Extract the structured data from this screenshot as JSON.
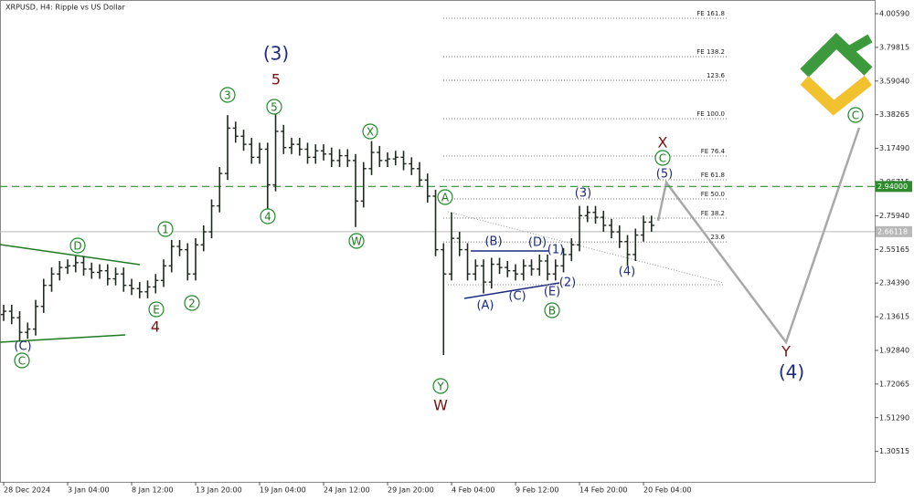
{
  "chart_data": {
    "type": "ohlc",
    "title": "XRPUSD, H4: Ripple vs US Dollar",
    "bar_color": "#1e2a1e",
    "open": [
      2.15,
      2.17,
      2.13,
      2.04,
      2.06,
      2.2,
      2.33,
      2.4,
      2.44,
      2.45,
      2.47,
      2.43,
      2.41,
      2.42,
      2.37,
      2.4,
      2.33,
      2.31,
      2.29,
      2.32,
      2.36,
      2.45,
      2.57,
      2.55,
      2.4,
      2.58,
      2.66,
      2.82,
      3.02,
      3.3,
      3.25,
      3.2,
      3.12,
      3.17,
      2.95,
      3.28,
      3.18,
      3.2,
      3.17,
      3.12,
      3.16,
      3.14,
      3.1,
      3.13,
      3.1,
      2.85,
      3.05,
      3.15,
      3.1,
      3.11,
      3.12,
      3.08,
      3.05,
      2.98,
      2.88,
      2.55,
      2.4,
      2.62,
      2.55,
      2.4,
      2.45,
      2.35,
      2.46,
      2.44,
      2.42,
      2.4,
      2.45,
      2.43,
      2.48,
      2.4,
      2.45,
      2.52,
      2.58,
      2.76,
      2.78,
      2.75,
      2.7,
      2.66,
      2.6,
      2.52,
      2.64,
      2.72
    ],
    "high": [
      2.21,
      2.21,
      2.17,
      2.1,
      2.24,
      2.37,
      2.44,
      2.48,
      2.49,
      2.51,
      2.51,
      2.47,
      2.46,
      2.46,
      2.44,
      2.44,
      2.37,
      2.35,
      2.36,
      2.4,
      2.49,
      2.61,
      2.61,
      2.59,
      2.62,
      2.7,
      2.86,
      3.06,
      3.38,
      3.34,
      3.29,
      3.24,
      3.21,
      3.21,
      3.39,
      3.32,
      3.24,
      3.24,
      3.21,
      3.2,
      3.2,
      3.18,
      3.17,
      3.17,
      3.14,
      3.09,
      3.22,
      3.19,
      3.15,
      3.16,
      3.16,
      3.12,
      3.09,
      3.02,
      2.92,
      2.59,
      2.78,
      2.66,
      2.59,
      2.49,
      2.49,
      2.5,
      2.5,
      2.48,
      2.46,
      2.49,
      2.49,
      2.52,
      2.52,
      2.49,
      2.56,
      2.62,
      2.82,
      2.82,
      2.82,
      2.79,
      2.74,
      2.7,
      2.64,
      2.68,
      2.76,
      2.76
    ],
    "low": [
      2.11,
      2.09,
      1.99,
      2.0,
      2.02,
      2.16,
      2.29,
      2.36,
      2.4,
      2.41,
      2.39,
      2.37,
      2.37,
      2.33,
      2.33,
      2.29,
      2.27,
      2.25,
      2.25,
      2.28,
      2.32,
      2.41,
      2.51,
      2.36,
      2.36,
      2.54,
      2.62,
      2.78,
      2.98,
      3.21,
      3.16,
      3.08,
      3.08,
      2.8,
      2.91,
      3.14,
      3.14,
      3.13,
      3.08,
      3.08,
      3.1,
      3.06,
      3.06,
      3.06,
      2.69,
      2.81,
      3.01,
      3.06,
      3.06,
      3.07,
      3.04,
      3.01,
      2.94,
      2.84,
      2.51,
      1.9,
      2.36,
      2.51,
      2.36,
      2.36,
      2.28,
      2.31,
      2.4,
      2.38,
      2.36,
      2.36,
      2.39,
      2.39,
      2.36,
      2.36,
      2.41,
      2.48,
      2.54,
      2.72,
      2.71,
      2.66,
      2.62,
      2.56,
      2.45,
      2.48,
      2.6,
      2.66
    ],
    "close": [
      2.17,
      2.13,
      2.04,
      2.06,
      2.2,
      2.33,
      2.4,
      2.44,
      2.45,
      2.47,
      2.43,
      2.41,
      2.42,
      2.37,
      2.4,
      2.33,
      2.31,
      2.29,
      2.32,
      2.36,
      2.45,
      2.57,
      2.55,
      2.4,
      2.58,
      2.66,
      2.82,
      3.02,
      3.3,
      3.25,
      3.2,
      3.12,
      3.17,
      2.95,
      3.28,
      3.18,
      3.2,
      3.17,
      3.12,
      3.16,
      3.14,
      3.1,
      3.13,
      3.1,
      2.85,
      3.05,
      3.15,
      3.1,
      3.11,
      3.12,
      3.08,
      3.05,
      2.98,
      2.88,
      2.55,
      2.4,
      2.62,
      2.55,
      2.4,
      2.45,
      2.35,
      2.46,
      2.44,
      2.42,
      2.4,
      2.45,
      2.43,
      2.48,
      2.4,
      2.45,
      2.52,
      2.58,
      2.76,
      2.78,
      2.75,
      2.7,
      2.66,
      2.6,
      2.52,
      2.64,
      2.72,
      2.7
    ],
    "xlim": [
      -0.46,
      108.91
    ],
    "xticks": [
      {
        "value": 0,
        "label": "28 Dec 2024"
      },
      {
        "value": 8,
        "label": "3 Jan 04:00"
      },
      {
        "value": 16,
        "label": "8 Jan 12:00"
      },
      {
        "value": 24,
        "label": "13 Jan 20:00"
      },
      {
        "value": 32,
        "label": "19 Jan 04:00"
      },
      {
        "value": 40,
        "label": "24 Jan 12:00"
      },
      {
        "value": 48,
        "label": "29 Jan 20:00"
      },
      {
        "value": 56,
        "label": "4 Feb 04:00"
      },
      {
        "value": 64,
        "label": "9 Feb 12:00"
      },
      {
        "value": 72,
        "label": "14 Feb 20:00"
      },
      {
        "value": 80,
        "label": "20 Feb 04:00"
      }
    ],
    "ylim": [
      1.1175,
      4.0905
    ],
    "yticks": [
      {
        "value": 4.0059,
        "label": "4.00590"
      },
      3.79815,
      {
        "value": 3.5904,
        "label": "3.59040"
      },
      3.38265,
      {
        "value": 3.1749,
        "label": "3.17490"
      },
      2.96715,
      {
        "value": 2.7594,
        "label": "2.75940"
      },
      2.55165,
      {
        "value": 2.3439,
        "label": "2.34390"
      },
      2.13615,
      {
        "value": 1.9284,
        "label": "1.92840"
      },
      1.72065,
      {
        "value": 1.5129,
        "label": "1.51290"
      },
      1.30515
    ],
    "price_lines": [
      {
        "value": 2.94,
        "label": "2.94000",
        "color": "#2e8b2e"
      },
      {
        "value": 2.66118,
        "label": "2.66118",
        "color": "#b8b8b8"
      }
    ],
    "fib_levels": [
      {
        "label": "FE 161.8",
        "value": 3.978
      },
      {
        "label": "FE 138.2",
        "value": 3.741
      },
      {
        "label": "123.6",
        "value": 3.595
      },
      {
        "label": "FE 100.0",
        "value": 3.358
      },
      {
        "label": "FE 76.4",
        "value": 3.128
      },
      {
        "label": "FE 61.8",
        "value": 2.981
      },
      {
        "label": "FE 50.0",
        "value": 2.863
      },
      {
        "label": "FE 38.2",
        "value": 2.745
      },
      {
        "label": "23.6",
        "value": 2.598
      }
    ],
    "wave_labels": [
      "C",
      "D",
      "E",
      "1",
      "2",
      "3",
      "5",
      "4",
      "X",
      "W",
      "A",
      "Y",
      "B",
      "C",
      "C",
      "(3)",
      "(C)",
      "(B)",
      "(D)",
      "(1)",
      "(A)",
      "(C)",
      "(E)",
      "(2)",
      "(3)",
      "(4)",
      "(5)",
      "(4)",
      "5",
      "4",
      "W",
      "X",
      "Y"
    ]
  }
}
